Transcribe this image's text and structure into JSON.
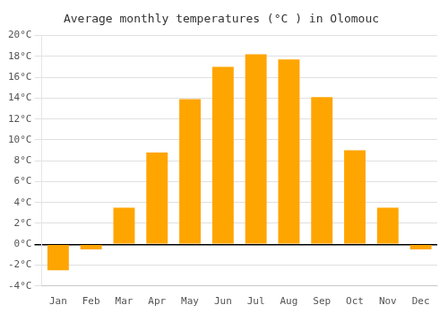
{
  "chart_data": {
    "type": "bar",
    "title": "Average monthly temperatures (°C ) in Olomouc",
    "categories": [
      "Jan",
      "Feb",
      "Mar",
      "Apr",
      "May",
      "Jun",
      "Jul",
      "Aug",
      "Sep",
      "Oct",
      "Nov",
      "Dec"
    ],
    "values": [
      -2.5,
      -0.5,
      3.5,
      8.8,
      13.9,
      17.0,
      18.2,
      17.7,
      14.1,
      9.0,
      3.5,
      -0.5
    ],
    "color": "#FFA500",
    "ylim": [
      -4,
      20
    ],
    "yticks": [
      {
        "value": -4,
        "label": "-4°C"
      },
      {
        "value": -2,
        "label": "-2°C"
      },
      {
        "value": 0,
        "label": "0°C"
      },
      {
        "value": 2,
        "label": "2°C"
      },
      {
        "value": 4,
        "label": "4°C"
      },
      {
        "value": 6,
        "label": "6°C"
      },
      {
        "value": 8,
        "label": "8°C"
      },
      {
        "value": 10,
        "label": "10°C"
      },
      {
        "value": 12,
        "label": "12°C"
      },
      {
        "value": 14,
        "label": "14°C"
      },
      {
        "value": 16,
        "label": "16°C"
      },
      {
        "value": 18,
        "label": "18°C"
      },
      {
        "value": 20,
        "label": "20°C"
      }
    ],
    "grid": true
  }
}
